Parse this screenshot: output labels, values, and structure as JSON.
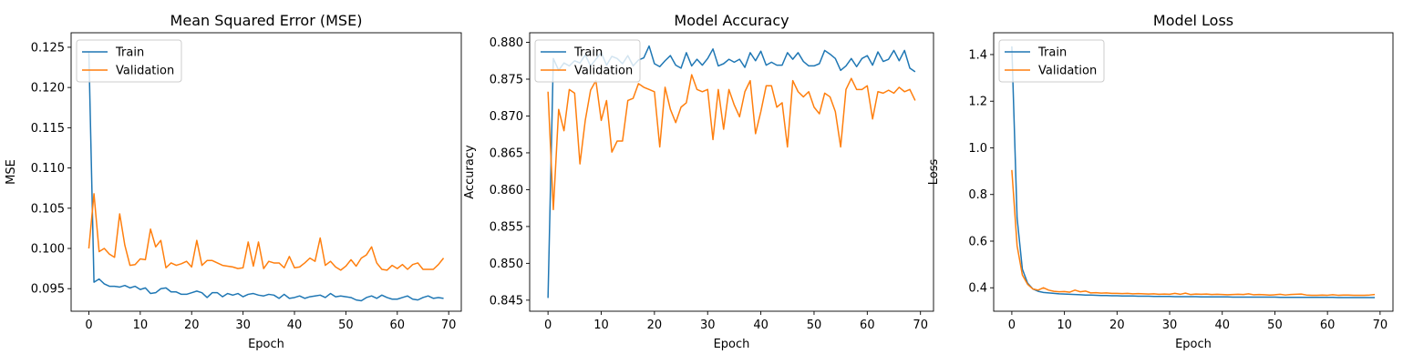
{
  "figure": {
    "background": "#ffffff"
  },
  "colors": {
    "train": "#1f77b4",
    "validation": "#ff7f0e",
    "legend_border": "#cccccc"
  },
  "chart_data": [
    {
      "type": "line",
      "title": "Mean Squared Error (MSE)",
      "xlabel": "Epoch",
      "ylabel": "MSE",
      "xlim": [
        -3.45,
        72.45
      ],
      "ylim": [
        0.0922,
        0.1268
      ],
      "xticks": [
        0,
        10,
        20,
        30,
        40,
        50,
        60,
        70
      ],
      "yticks": [
        0.095,
        0.1,
        0.105,
        0.11,
        0.115,
        0.12,
        0.125
      ],
      "ytick_labels": [
        "0.095",
        "0.100",
        "0.105",
        "0.110",
        "0.115",
        "0.120",
        "0.125"
      ],
      "grid": false,
      "legend": "upper-left",
      "series": [
        {
          "name": "Train",
          "color": "#1f77b4",
          "values": [
            0.1245,
            0.0958,
            0.0962,
            0.0956,
            0.0953,
            0.0953,
            0.0952,
            0.0954,
            0.0951,
            0.0953,
            0.0949,
            0.0951,
            0.0944,
            0.0945,
            0.095,
            0.0951,
            0.0946,
            0.0946,
            0.0943,
            0.0943,
            0.0945,
            0.0947,
            0.0945,
            0.0939,
            0.0945,
            0.0945,
            0.094,
            0.0944,
            0.0942,
            0.0944,
            0.094,
            0.0943,
            0.0944,
            0.0942,
            0.0941,
            0.0943,
            0.0942,
            0.0938,
            0.0943,
            0.0938,
            0.0939,
            0.0941,
            0.0938,
            0.094,
            0.0941,
            0.0942,
            0.0939,
            0.0944,
            0.094,
            0.0941,
            0.094,
            0.0939,
            0.0936,
            0.0935,
            0.0939,
            0.0941,
            0.0938,
            0.0942,
            0.0939,
            0.0937,
            0.0937,
            0.0939,
            0.0941,
            0.0937,
            0.0936,
            0.0939,
            0.0941,
            0.0938,
            0.0939,
            0.0938
          ]
        },
        {
          "name": "Validation",
          "color": "#ff7f0e",
          "values": [
            0.1,
            0.1068,
            0.0996,
            0.1,
            0.0993,
            0.0989,
            0.1043,
            0.1004,
            0.0979,
            0.098,
            0.0987,
            0.0986,
            0.1024,
            0.1002,
            0.101,
            0.0976,
            0.0982,
            0.0979,
            0.0981,
            0.0984,
            0.0977,
            0.101,
            0.0979,
            0.0985,
            0.0985,
            0.0982,
            0.0979,
            0.0978,
            0.0977,
            0.0975,
            0.0976,
            0.1008,
            0.0978,
            0.1008,
            0.0975,
            0.0984,
            0.0982,
            0.0982,
            0.0976,
            0.099,
            0.0976,
            0.0977,
            0.0982,
            0.0988,
            0.0984,
            0.1013,
            0.0979,
            0.0984,
            0.0977,
            0.0973,
            0.0978,
            0.0986,
            0.0978,
            0.0988,
            0.0992,
            0.1002,
            0.0982,
            0.0974,
            0.0973,
            0.0979,
            0.0975,
            0.098,
            0.0974,
            0.098,
            0.0982,
            0.0974,
            0.0974,
            0.0974,
            0.098,
            0.0988
          ]
        }
      ]
    },
    {
      "type": "line",
      "title": "Model Accuracy",
      "xlabel": "Epoch",
      "ylabel": "Accuracy",
      "xlim": [
        -3.45,
        72.45
      ],
      "ylim": [
        0.8435,
        0.8813
      ],
      "xticks": [
        0,
        10,
        20,
        30,
        40,
        50,
        60,
        70
      ],
      "yticks": [
        0.845,
        0.85,
        0.855,
        0.86,
        0.865,
        0.87,
        0.875,
        0.88
      ],
      "ytick_labels": [
        "0.845",
        "0.850",
        "0.855",
        "0.860",
        "0.865",
        "0.870",
        "0.875",
        "0.880"
      ],
      "grid": false,
      "legend": "upper-left",
      "series": [
        {
          "name": "Train",
          "color": "#1f77b4",
          "values": [
            0.8453,
            0.8778,
            0.8762,
            0.8772,
            0.8768,
            0.8775,
            0.8772,
            0.8783,
            0.8768,
            0.8777,
            0.8786,
            0.8769,
            0.8781,
            0.8778,
            0.8771,
            0.8782,
            0.8768,
            0.8776,
            0.8779,
            0.8795,
            0.8771,
            0.8767,
            0.8775,
            0.8782,
            0.8769,
            0.8765,
            0.8786,
            0.8768,
            0.8777,
            0.8769,
            0.8778,
            0.8791,
            0.8768,
            0.8771,
            0.8777,
            0.8773,
            0.8777,
            0.8766,
            0.8786,
            0.8775,
            0.8788,
            0.8769,
            0.8773,
            0.8769,
            0.8769,
            0.8786,
            0.8777,
            0.8786,
            0.8774,
            0.8768,
            0.8768,
            0.8771,
            0.8789,
            0.8784,
            0.8778,
            0.8762,
            0.8768,
            0.8778,
            0.8767,
            0.8778,
            0.8782,
            0.8769,
            0.8787,
            0.8774,
            0.8777,
            0.8789,
            0.8775,
            0.8789,
            0.8765,
            0.876
          ]
        },
        {
          "name": "Validation",
          "color": "#ff7f0e",
          "values": [
            0.8733,
            0.8573,
            0.8709,
            0.868,
            0.8736,
            0.8731,
            0.8635,
            0.8694,
            0.8735,
            0.8748,
            0.8694,
            0.8721,
            0.8651,
            0.8666,
            0.8666,
            0.8721,
            0.8724,
            0.8744,
            0.8739,
            0.8736,
            0.8733,
            0.8658,
            0.8739,
            0.8709,
            0.8691,
            0.8712,
            0.8718,
            0.8756,
            0.8736,
            0.8733,
            0.8736,
            0.8668,
            0.8736,
            0.8682,
            0.8736,
            0.8715,
            0.8699,
            0.8733,
            0.8748,
            0.8676,
            0.8706,
            0.8741,
            0.8741,
            0.8712,
            0.8718,
            0.8658,
            0.8748,
            0.8733,
            0.8726,
            0.8733,
            0.8712,
            0.8703,
            0.8731,
            0.8726,
            0.8706,
            0.8658,
            0.8736,
            0.8751,
            0.8736,
            0.8736,
            0.8741,
            0.8696,
            0.8733,
            0.8731,
            0.8735,
            0.8731,
            0.8739,
            0.8733,
            0.8736,
            0.8721
          ]
        }
      ]
    },
    {
      "type": "line",
      "title": "Model Loss",
      "xlabel": "Epoch",
      "ylabel": "Loss",
      "xlim": [
        -3.45,
        72.45
      ],
      "ylim": [
        0.2995,
        1.4935
      ],
      "xticks": [
        0,
        10,
        20,
        30,
        40,
        50,
        60,
        70
      ],
      "yticks": [
        0.4,
        0.6,
        0.8,
        1.0,
        1.2,
        1.4
      ],
      "ytick_labels": [
        "0.4",
        "0.6",
        "0.8",
        "1.0",
        "1.2",
        "1.4"
      ],
      "grid": false,
      "legend": "upper-left",
      "series": [
        {
          "name": "Train",
          "color": "#1f77b4",
          "values": [
            1.435,
            0.7,
            0.48,
            0.42,
            0.395,
            0.385,
            0.38,
            0.378,
            0.376,
            0.374,
            0.373,
            0.372,
            0.371,
            0.37,
            0.369,
            0.369,
            0.368,
            0.367,
            0.367,
            0.366,
            0.366,
            0.365,
            0.365,
            0.365,
            0.364,
            0.364,
            0.364,
            0.363,
            0.363,
            0.363,
            0.363,
            0.362,
            0.362,
            0.362,
            0.362,
            0.362,
            0.361,
            0.361,
            0.361,
            0.361,
            0.361,
            0.361,
            0.36,
            0.36,
            0.36,
            0.36,
            0.36,
            0.36,
            0.36,
            0.36,
            0.36,
            0.359,
            0.359,
            0.359,
            0.359,
            0.359,
            0.359,
            0.359,
            0.359,
            0.359,
            0.359,
            0.359,
            0.358,
            0.358,
            0.358,
            0.358,
            0.358,
            0.358,
            0.358,
            0.358
          ]
        },
        {
          "name": "Validation",
          "color": "#ff7f0e",
          "values": [
            0.905,
            0.58,
            0.455,
            0.415,
            0.395,
            0.39,
            0.4,
            0.39,
            0.385,
            0.383,
            0.384,
            0.381,
            0.39,
            0.383,
            0.386,
            0.378,
            0.379,
            0.377,
            0.378,
            0.376,
            0.376,
            0.375,
            0.376,
            0.374,
            0.375,
            0.374,
            0.373,
            0.374,
            0.372,
            0.373,
            0.372,
            0.376,
            0.372,
            0.377,
            0.371,
            0.373,
            0.372,
            0.373,
            0.371,
            0.372,
            0.371,
            0.37,
            0.371,
            0.372,
            0.371,
            0.374,
            0.37,
            0.371,
            0.37,
            0.369,
            0.37,
            0.372,
            0.369,
            0.371,
            0.372,
            0.373,
            0.369,
            0.368,
            0.368,
            0.369,
            0.368,
            0.37,
            0.368,
            0.369,
            0.369,
            0.368,
            0.368,
            0.368,
            0.369,
            0.371
          ]
        }
      ]
    }
  ]
}
